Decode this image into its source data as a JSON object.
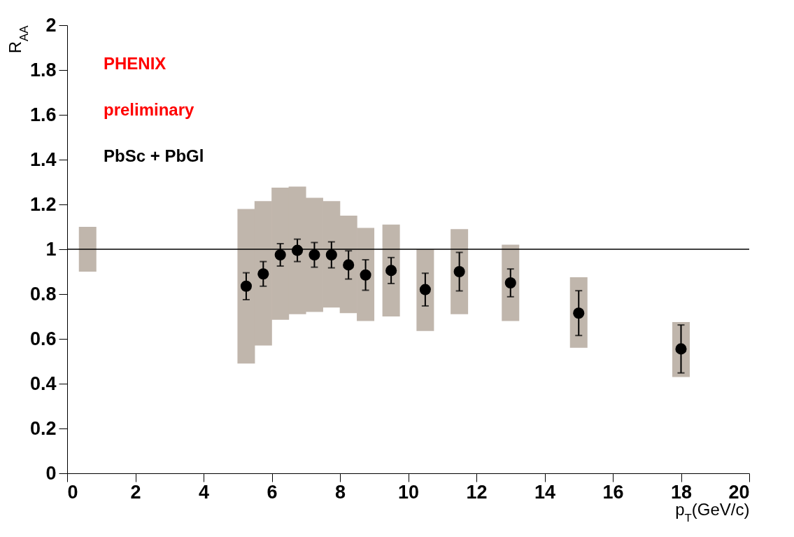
{
  "chart_data": {
    "type": "scatter",
    "xlabel": "p$_{T}$(GeV/c)",
    "ylabel": "R$_{AA}$",
    "annotations": [
      "PHENIX",
      "preliminary",
      "PbSc + PbGl"
    ],
    "xlim": [
      0,
      20
    ],
    "xticks": [
      0,
      2,
      4,
      6,
      8,
      10,
      12,
      14,
      16,
      18,
      20
    ],
    "ylim": [
      0,
      2
    ],
    "yticks": [
      0,
      0.2,
      0.4,
      0.6,
      0.8,
      1,
      1.2,
      1.4,
      1.6,
      1.8,
      2
    ],
    "marker": "circle",
    "grid": false,
    "ref_lines": [
      {
        "axis": "y",
        "value": 1,
        "color": "#000000"
      }
    ],
    "series": [
      {
        "type": "bar",
        "color": "#c0b6ac",
        "x": [
          0.6,
          5.25,
          5.75,
          6.25,
          6.75,
          7.25,
          7.75,
          8.25,
          8.75,
          9.5,
          10.5,
          11.5,
          13,
          15,
          18
        ],
        "base": [
          0.9,
          0.49,
          0.57,
          0.685,
          0.71,
          0.72,
          0.74,
          0.715,
          0.68,
          0.7,
          0.635,
          0.71,
          0.68,
          0.56,
          0.43
        ],
        "values": [
          0.2,
          0.69,
          0.645,
          0.59,
          0.57,
          0.51,
          0.475,
          0.435,
          0.415,
          0.41,
          0.365,
          0.38,
          0.34,
          0.315,
          0.245
        ]
      },
      {
        "color": "#000000",
        "x": [
          5.25,
          5.75,
          6.25,
          6.75,
          7.25,
          7.75,
          8.25,
          8.75,
          9.5,
          10.5,
          11.5,
          13,
          15,
          18
        ],
        "values": [
          0.835,
          0.89,
          0.975,
          0.995,
          0.975,
          0.975,
          0.93,
          0.885,
          0.905,
          0.82,
          0.9,
          0.85,
          0.715,
          0.555
        ],
        "errors": [
          0.06,
          0.055,
          0.05,
          0.05,
          0.055,
          0.058,
          0.063,
          0.068,
          0.058,
          0.073,
          0.086,
          0.062,
          0.1,
          0.107
        ]
      }
    ]
  }
}
